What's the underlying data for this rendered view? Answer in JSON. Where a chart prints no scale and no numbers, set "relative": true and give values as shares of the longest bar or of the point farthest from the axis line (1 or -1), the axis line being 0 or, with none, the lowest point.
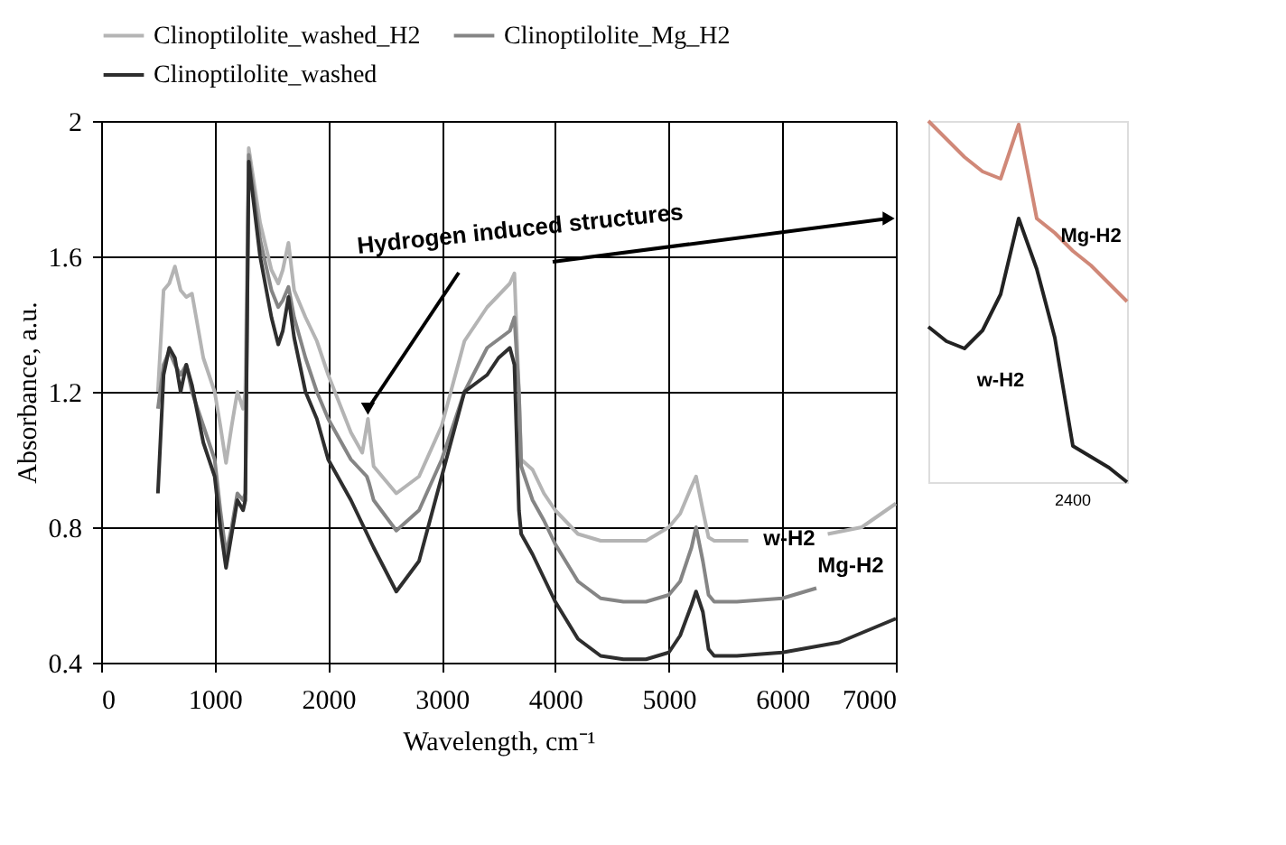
{
  "chart_data": [
    {
      "type": "line",
      "xlabel": "Wavelength, cm⁻¹",
      "ylabel": "Absorbance, a.u.",
      "xlim": [
        0,
        7000
      ],
      "xticks": [
        0,
        1000,
        2000,
        3000,
        4000,
        5000,
        6000,
        7000
      ],
      "ylim": [
        0.4,
        2
      ],
      "yticks": [
        0.4,
        0.8,
        1.2,
        1.6,
        2
      ],
      "grid": true,
      "legend": "top",
      "series": [
        {
          "name": "Clinoptilolite_washed_H2",
          "color": "#b4b4b4",
          "x": [
            500,
            550,
            600,
            650,
            700,
            750,
            800,
            900,
            1000,
            1050,
            1100,
            1150,
            1200,
            1250,
            1270,
            1300,
            1400,
            1500,
            1560,
            1600,
            1650,
            1700,
            1800,
            1900,
            2000,
            2200,
            2300,
            2350,
            2400,
            2600,
            2800,
            3000,
            3200,
            3400,
            3600,
            3640,
            3680,
            3700,
            3800,
            3900,
            4000,
            4200,
            4400,
            4600,
            4800,
            5000,
            5100,
            5200,
            5240,
            5300,
            5350,
            5400,
            5700,
            6000,
            6400,
            6700,
            7000
          ],
          "values": [
            1.2,
            1.5,
            1.52,
            1.57,
            1.5,
            1.48,
            1.49,
            1.3,
            1.2,
            1.1,
            0.99,
            1.1,
            1.2,
            1.15,
            1.2,
            1.92,
            1.7,
            1.56,
            1.52,
            1.56,
            1.64,
            1.5,
            1.42,
            1.35,
            1.25,
            1.08,
            1.02,
            1.12,
            0.98,
            0.9,
            0.95,
            1.1,
            1.35,
            1.45,
            1.52,
            1.55,
            1.2,
            1.0,
            0.97,
            0.9,
            0.85,
            0.78,
            0.76,
            0.76,
            0.76,
            0.8,
            0.84,
            0.92,
            0.95,
            0.85,
            0.77,
            0.76,
            0.76,
            null,
            0.78,
            0.8,
            0.87
          ]
        },
        {
          "name": "Clinoptilolite_Mg_H2",
          "color": "#858585",
          "x": [
            500,
            550,
            600,
            650,
            700,
            750,
            800,
            900,
            1000,
            1050,
            1100,
            1150,
            1200,
            1250,
            1270,
            1300,
            1400,
            1500,
            1560,
            1600,
            1650,
            1700,
            1800,
            1900,
            2000,
            2200,
            2340,
            2360,
            2400,
            2600,
            2800,
            3000,
            3200,
            3400,
            3600,
            3640,
            3680,
            3700,
            3800,
            3900,
            4000,
            4200,
            4400,
            4600,
            4800,
            5000,
            5100,
            5200,
            5240,
            5300,
            5350,
            5400,
            5600,
            6000,
            6300
          ],
          "values": [
            1.15,
            1.28,
            1.32,
            1.28,
            1.25,
            1.28,
            1.2,
            1.1,
            1.0,
            0.85,
            0.72,
            0.8,
            0.9,
            0.88,
            0.9,
            1.9,
            1.65,
            1.5,
            1.45,
            1.47,
            1.51,
            1.42,
            1.3,
            1.2,
            1.12,
            1.0,
            0.95,
            0.93,
            0.88,
            0.79,
            0.85,
            1.0,
            1.2,
            1.33,
            1.38,
            1.42,
            1.2,
            0.98,
            0.88,
            0.82,
            0.75,
            0.64,
            0.59,
            0.58,
            0.58,
            0.6,
            0.64,
            0.74,
            0.8,
            0.7,
            0.6,
            0.58,
            0.58,
            0.59,
            0.62
          ]
        },
        {
          "name": "Clinoptilolite_washed",
          "color": "#2e2e2e",
          "x": [
            500,
            550,
            600,
            650,
            700,
            750,
            800,
            900,
            1000,
            1050,
            1100,
            1150,
            1200,
            1250,
            1270,
            1300,
            1400,
            1500,
            1560,
            1600,
            1650,
            1700,
            1800,
            1900,
            2000,
            2200,
            2400,
            2600,
            2800,
            3000,
            3200,
            3400,
            3500,
            3600,
            3640,
            3680,
            3700,
            3800,
            3900,
            4000,
            4200,
            4400,
            4600,
            4800,
            5000,
            5100,
            5200,
            5240,
            5300,
            5350,
            5400,
            5600,
            6000,
            6500,
            7000
          ],
          "values": [
            0.9,
            1.25,
            1.33,
            1.3,
            1.2,
            1.28,
            1.22,
            1.05,
            0.95,
            0.8,
            0.68,
            0.78,
            0.88,
            0.85,
            0.88,
            1.88,
            1.6,
            1.42,
            1.34,
            1.38,
            1.48,
            1.36,
            1.2,
            1.12,
            1.0,
            0.88,
            0.74,
            0.61,
            0.7,
            0.95,
            1.2,
            1.25,
            1.3,
            1.33,
            1.28,
            0.85,
            0.78,
            0.72,
            0.65,
            0.58,
            0.47,
            0.42,
            0.41,
            0.41,
            0.43,
            0.48,
            0.57,
            0.61,
            0.55,
            0.44,
            0.42,
            0.42,
            0.43,
            0.46,
            0.53
          ]
        }
      ],
      "annotations": [
        {
          "text": "Hydrogen induced structures",
          "x": 2350,
          "y": 1.15
        },
        "w-H2",
        "Mg-H2"
      ]
    },
    {
      "type": "line",
      "relative": true,
      "categories": [
        null,
        null,
        null,
        null,
        null,
        null,
        null,
        null,
        null,
        null,
        null,
        null
      ],
      "annotations": [
        "2400"
      ],
      "series": [
        {
          "name": "Mg-H2",
          "color": "#d08878",
          "values": [
            1.0,
            0.95,
            0.9,
            0.86,
            0.84,
            0.99,
            0.73,
            0.69,
            0.64,
            0.6,
            0.55,
            0.5
          ]
        },
        {
          "name": "w-H2",
          "color": "#222222",
          "values": [
            0.43,
            0.39,
            0.37,
            0.42,
            0.52,
            0.73,
            0.59,
            0.4,
            0.1,
            0.07,
            0.04,
            0.0
          ]
        }
      ]
    }
  ]
}
